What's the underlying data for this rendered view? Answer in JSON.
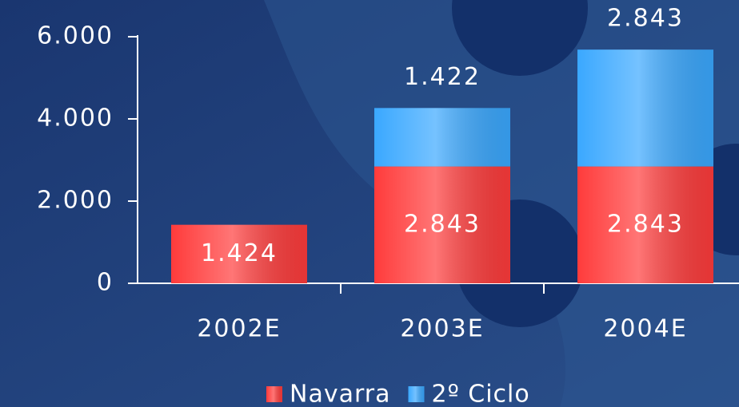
{
  "chart_data": {
    "type": "stacked_bar",
    "categories": [
      "2002E",
      "2003E",
      "2004E"
    ],
    "series": [
      {
        "name": "Navarra",
        "color": "#ff3b3b",
        "values": [
          1424,
          2843,
          2843
        ],
        "value_labels": [
          "1.424",
          "2.843",
          "2.843"
        ]
      },
      {
        "name": "2º Ciclo",
        "color": "#3aa8ff",
        "values": [
          null,
          1422,
          2843
        ],
        "value_labels": [
          null,
          "1.422",
          "2.843"
        ]
      }
    ],
    "ylim": [
      0,
      6000
    ],
    "yticks": [
      0,
      {
        "value": 2000,
        "label": "2.000"
      },
      {
        "value": 4000,
        "label": "4.000"
      },
      {
        "value": 6000,
        "label": "6.000"
      }
    ],
    "legend": "bottom"
  }
}
